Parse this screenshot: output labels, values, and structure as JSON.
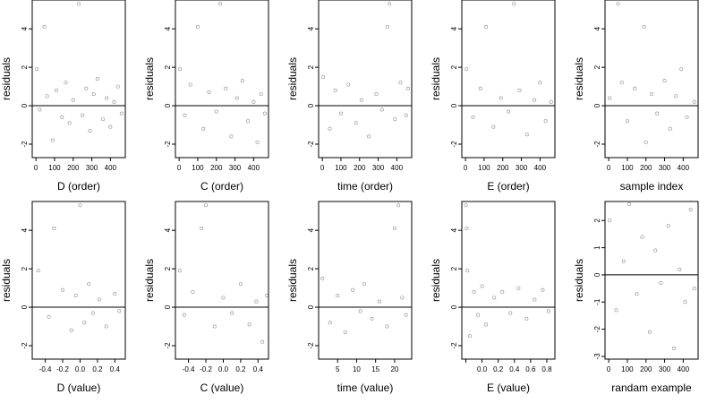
{
  "chart_data": [
    {
      "type": "scatter",
      "xlabel": "D (order)",
      "ylabel": "residuals",
      "xlim": [
        -20,
        480
      ],
      "ylim": [
        -2.7,
        5.5
      ],
      "xticks": [
        0,
        100,
        200,
        300,
        400
      ],
      "yticks": [
        -2,
        0,
        2,
        4
      ],
      "x": [
        5,
        20,
        45,
        60,
        90,
        110,
        140,
        160,
        180,
        200,
        230,
        250,
        270,
        290,
        310,
        330,
        360,
        380,
        400,
        420,
        440,
        460
      ],
      "y": [
        1.9,
        -0.2,
        4.1,
        0.5,
        -1.8,
        0.8,
        -0.6,
        1.2,
        -0.9,
        0.3,
        5.3,
        -0.5,
        0.9,
        -1.3,
        0.6,
        1.4,
        -0.7,
        0.4,
        -1.1,
        0.2,
        1.0,
        -0.4
      ],
      "zero_line": 0
    },
    {
      "type": "scatter",
      "xlabel": "C (order)",
      "ylabel": "residuals",
      "xlim": [
        -20,
        480
      ],
      "ylim": [
        -2.7,
        5.5
      ],
      "xticks": [
        0,
        100,
        200,
        300,
        400
      ],
      "yticks": [
        -2,
        0,
        2,
        4
      ],
      "x": [
        5,
        30,
        60,
        100,
        130,
        160,
        200,
        220,
        250,
        280,
        310,
        340,
        370,
        400,
        420,
        440,
        460
      ],
      "y": [
        1.9,
        -0.5,
        1.1,
        4.1,
        -1.2,
        0.7,
        -0.3,
        5.3,
        0.9,
        -1.6,
        0.4,
        1.3,
        -0.8,
        0.2,
        -1.9,
        0.6,
        -0.4
      ],
      "zero_line": 0
    },
    {
      "type": "scatter",
      "xlabel": "time (order)",
      "ylabel": "residuals",
      "xlim": [
        -20,
        480
      ],
      "ylim": [
        -2.7,
        5.5
      ],
      "xticks": [
        0,
        100,
        200,
        300,
        400
      ],
      "yticks": [
        -2,
        0,
        2,
        4
      ],
      "x": [
        5,
        40,
        70,
        100,
        140,
        180,
        210,
        250,
        290,
        320,
        350,
        360,
        390,
        420,
        450,
        460
      ],
      "y": [
        1.5,
        -1.2,
        0.8,
        -0.4,
        1.1,
        -0.9,
        0.3,
        -1.6,
        0.6,
        -0.2,
        4.1,
        5.3,
        -0.7,
        1.2,
        -0.5,
        0.9
      ],
      "zero_line": 0
    },
    {
      "type": "scatter",
      "xlabel": "E (order)",
      "ylabel": "residuals",
      "xlim": [
        -20,
        480
      ],
      "ylim": [
        -2.7,
        5.5
      ],
      "xticks": [
        0,
        100,
        200,
        300,
        400
      ],
      "yticks": [
        -2,
        0,
        2,
        4
      ],
      "x": [
        5,
        40,
        80,
        110,
        150,
        190,
        230,
        260,
        290,
        330,
        370,
        400,
        430,
        460
      ],
      "y": [
        1.9,
        -0.6,
        0.9,
        4.1,
        -1.1,
        0.4,
        -0.3,
        5.3,
        0.8,
        -1.5,
        0.3,
        1.2,
        -0.8,
        0.2
      ],
      "zero_line": 0
    },
    {
      "type": "scatter",
      "xlabel": "sample index",
      "ylabel": "residuals",
      "xlim": [
        -20,
        480
      ],
      "ylim": [
        -2.7,
        5.5
      ],
      "xticks": [
        0,
        100,
        200,
        300,
        400
      ],
      "yticks": [
        -2,
        0,
        2,
        4
      ],
      "x": [
        5,
        50,
        70,
        100,
        140,
        190,
        200,
        230,
        260,
        300,
        330,
        360,
        390,
        420,
        460
      ],
      "y": [
        0.4,
        5.3,
        1.2,
        -0.8,
        0.9,
        4.1,
        -1.9,
        0.6,
        -0.4,
        1.3,
        -1.2,
        0.5,
        1.9,
        -0.6,
        0.2
      ],
      "zero_line": 0
    },
    {
      "type": "scatter",
      "xlabel": "D (value)",
      "ylabel": "residuals",
      "xlim": [
        -0.55,
        0.52
      ],
      "ylim": [
        -2.7,
        5.5
      ],
      "xticks": [
        -0.4,
        -0.2,
        0.0,
        0.2,
        0.4
      ],
      "xtick_labels": [
        "-0.4",
        "-0.2",
        "0.0",
        "0.2",
        "0.4"
      ],
      "yticks": [
        -2,
        0,
        2,
        4
      ],
      "x": [
        -0.48,
        -0.36,
        -0.3,
        -0.2,
        -0.1,
        -0.05,
        0.0,
        0.05,
        0.1,
        0.15,
        0.22,
        0.3,
        0.4,
        0.45
      ],
      "y": [
        1.9,
        -0.5,
        4.1,
        0.9,
        -1.2,
        0.6,
        5.3,
        -0.8,
        1.2,
        -0.3,
        0.4,
        -1.0,
        0.7,
        -0.2
      ],
      "zero_line": 0
    },
    {
      "type": "scatter",
      "xlabel": "C (value)",
      "ylabel": "residuals",
      "xlim": [
        -0.55,
        0.52
      ],
      "ylim": [
        -2.7,
        5.5
      ],
      "xticks": [
        -0.4,
        -0.2,
        0.0,
        0.2,
        0.4
      ],
      "xtick_labels": [
        "-0.4",
        "-0.2",
        "0.0",
        "0.2",
        "0.4"
      ],
      "yticks": [
        -2,
        0,
        2,
        4
      ],
      "x": [
        -0.5,
        -0.45,
        -0.35,
        -0.25,
        -0.2,
        -0.1,
        0.0,
        0.1,
        0.2,
        0.3,
        0.38,
        0.45,
        0.5
      ],
      "y": [
        1.9,
        -0.4,
        0.8,
        4.1,
        5.3,
        -1.0,
        0.5,
        -0.3,
        1.2,
        -0.9,
        0.3,
        -1.8,
        0.6
      ],
      "zero_line": 0
    },
    {
      "type": "scatter",
      "xlabel": "time (value)",
      "ylabel": "residuals",
      "xlim": [
        0,
        24.5
      ],
      "ylim": [
        -2.7,
        5.5
      ],
      "xticks": [
        5,
        10,
        15,
        20
      ],
      "yticks": [
        -2,
        0,
        2,
        4
      ],
      "x": [
        1,
        3,
        5,
        7,
        9,
        11,
        12,
        14,
        16,
        18,
        20,
        21,
        22,
        23
      ],
      "y": [
        1.5,
        -0.8,
        0.6,
        -1.3,
        0.9,
        -0.2,
        1.2,
        -0.6,
        0.3,
        -1.0,
        4.1,
        5.3,
        0.5,
        -0.4
      ],
      "zero_line": 0
    },
    {
      "type": "scatter",
      "xlabel": "E (value)",
      "ylabel": "residuals",
      "xlim": [
        -0.25,
        0.9
      ],
      "ylim": [
        -2.7,
        5.5
      ],
      "xticks": [
        -0.2,
        0.0,
        0.2,
        0.4,
        0.6,
        0.8
      ],
      "xtick_labels": [
        "",
        "0.0",
        "0.2",
        "0.4",
        "0.6",
        "0.8"
      ],
      "yticks": [
        -2,
        0,
        2,
        4
      ],
      "x": [
        -0.2,
        -0.19,
        -0.18,
        -0.15,
        -0.1,
        -0.05,
        0.0,
        0.05,
        0.15,
        0.25,
        0.35,
        0.45,
        0.55,
        0.65,
        0.75,
        0.82
      ],
      "y": [
        5.3,
        4.1,
        1.9,
        -1.5,
        0.8,
        -0.4,
        1.1,
        -0.9,
        0.5,
        0.8,
        -0.3,
        1.0,
        -0.6,
        0.4,
        0.9,
        -0.2
      ],
      "zero_line": 0
    },
    {
      "type": "scatter",
      "xlabel": "randam example",
      "ylabel": "residuals",
      "xlim": [
        -20,
        480
      ],
      "ylim": [
        -3.1,
        2.7
      ],
      "xticks": [
        0,
        100,
        200,
        300,
        400
      ],
      "yticks": [
        -3,
        -2,
        -1,
        0,
        1,
        2
      ],
      "x": [
        5,
        40,
        80,
        110,
        150,
        180,
        220,
        250,
        280,
        320,
        350,
        380,
        410,
        440,
        460
      ],
      "y": [
        2.0,
        -1.3,
        0.5,
        2.6,
        -0.7,
        1.4,
        -2.1,
        0.9,
        -0.3,
        1.8,
        -2.7,
        0.2,
        -1.0,
        2.4,
        -0.5
      ],
      "zero_line": 0
    }
  ]
}
